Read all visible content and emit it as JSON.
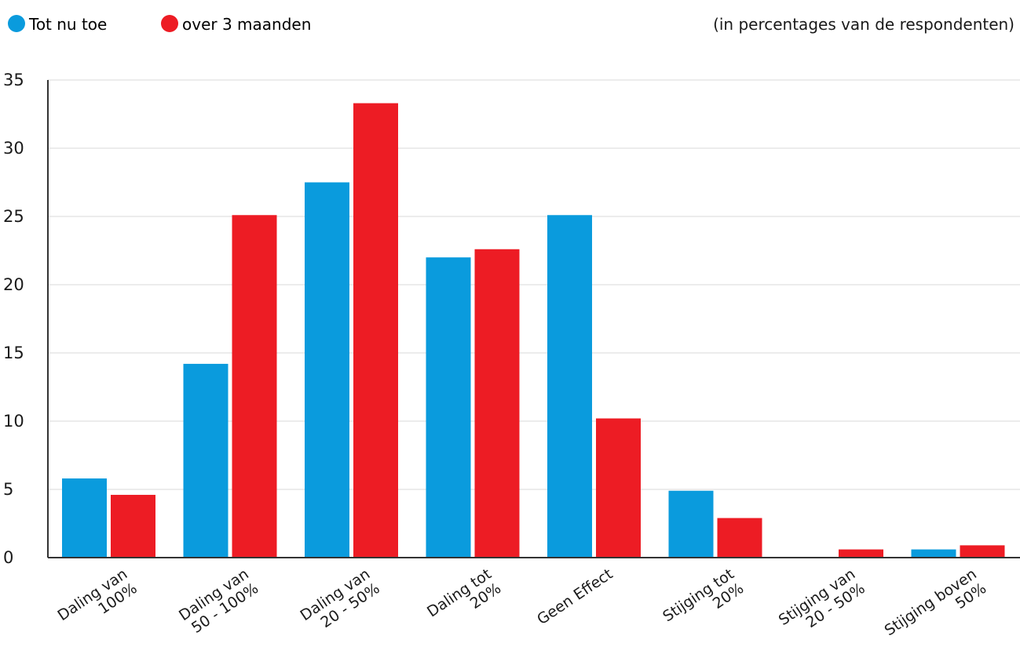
{
  "chart_data": {
    "type": "bar",
    "categories": [
      [
        "Daling van",
        "100%"
      ],
      [
        "Daling van",
        "50 - 100%"
      ],
      [
        "Daling van",
        "20 - 50%"
      ],
      [
        "Daling tot",
        "20%"
      ],
      [
        "Geen Effect"
      ],
      [
        "Stijging tot",
        "20%"
      ],
      [
        "Stijging van",
        "20 - 50%"
      ],
      [
        "Stijging boven",
        "50%"
      ]
    ],
    "series": [
      {
        "name": "Tot nu toe",
        "color": "#0a9bdd",
        "values": [
          5.8,
          14.2,
          27.5,
          22.0,
          25.1,
          4.9,
          0,
          0.6
        ]
      },
      {
        "name": "over 3 maanden",
        "color": "#ed1c24",
        "values": [
          4.6,
          25.1,
          33.3,
          22.6,
          10.2,
          2.9,
          0.6,
          0.9
        ]
      }
    ],
    "note": "(in percentages van de respondenten)",
    "yticks": [
      "0",
      "5",
      "10",
      "15",
      "20",
      "25",
      "30",
      "35"
    ],
    "ylim": [
      0,
      35
    ],
    "grid": true,
    "legend_position": "top-left"
  }
}
